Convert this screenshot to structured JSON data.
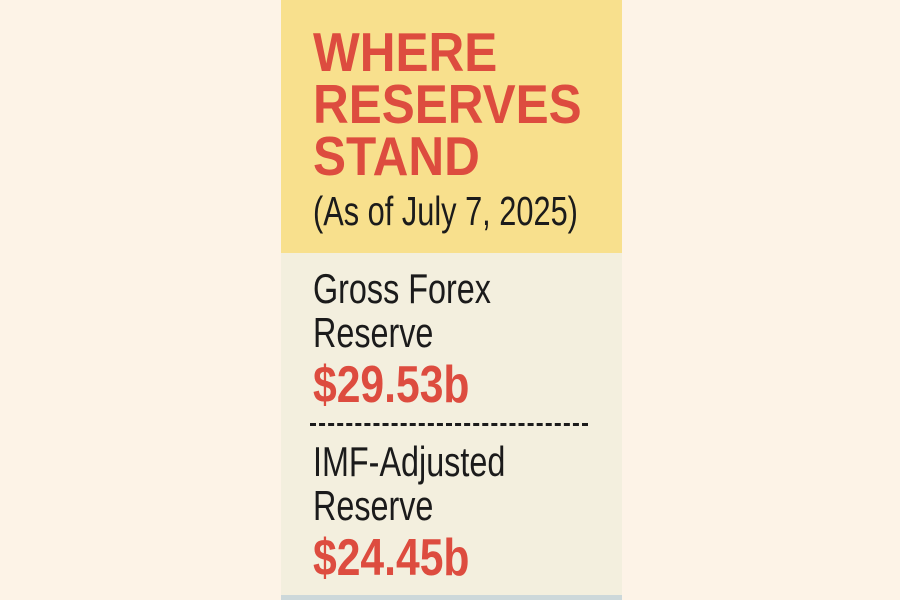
{
  "colors": {
    "page_bg": "#fdf3e7",
    "header_bg": "#f8e08d",
    "body_bg": "#f3efde",
    "accent_red": "#dd4c3f",
    "text_black": "#1b1b1b",
    "strip_blue": "#ccd8da"
  },
  "card": {
    "header": {
      "title_lines": [
        "WHERE",
        "RESERVES",
        "STAND"
      ],
      "subtitle": "(As of July 7, 2025)"
    },
    "stats": [
      {
        "label_lines": [
          "Gross Forex",
          "Reserve"
        ],
        "value": "$29.53b"
      },
      {
        "label_lines": [
          "IMF-Adjusted",
          "Reserve"
        ],
        "value": "$24.45b"
      }
    ]
  },
  "chart_data": {
    "type": "table",
    "title": "WHERE RESERVES STAND",
    "subtitle": "(As of July 7, 2025)",
    "categories": [
      "Gross Forex Reserve",
      "IMF-Adjusted Reserve"
    ],
    "values": [
      29.53,
      24.45
    ],
    "value_labels": [
      "$29.53b",
      "$24.45b"
    ],
    "unit": "billion USD"
  }
}
